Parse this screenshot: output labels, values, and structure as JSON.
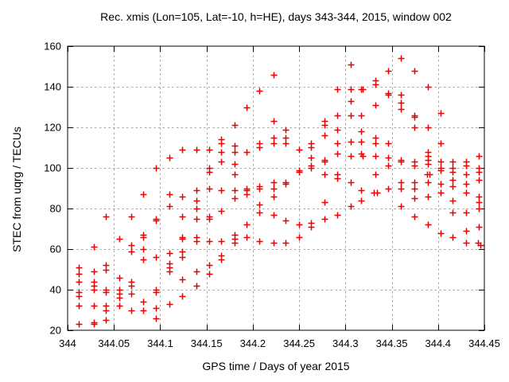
{
  "chart_data": {
    "type": "scatter",
    "title": "Rec. xmis (Lon=105, Lat=-10, h=HE), days 343-344, 2015, window 002",
    "xlabel": "GPS time / Days of year 2015",
    "ylabel": "STEC from uqrg / TECUs",
    "xlim": [
      344,
      344.45
    ],
    "ylim": [
      20,
      160
    ],
    "xticks": {
      "values": [
        344,
        344.05,
        344.1,
        344.15,
        344.2,
        344.25,
        344.3,
        344.35,
        344.4,
        344.45
      ],
      "labels": [
        "344",
        "344.05",
        "344.1",
        "344.15",
        "344.2",
        "344.25",
        "344.3",
        "344.35",
        "344.4",
        "344.45"
      ]
    },
    "yticks": {
      "values": [
        20,
        40,
        60,
        80,
        100,
        120,
        140,
        160
      ],
      "labels": [
        "20",
        "40",
        "60",
        "80",
        "100",
        "120",
        "140",
        "160"
      ]
    },
    "grid": true,
    "legend": "none",
    "marker": "plus",
    "colors": {
      "marker": "#e60000",
      "grid": "#a8a8a8",
      "axis": "#000000",
      "text": "#000000",
      "background": "#ffffff"
    },
    "series": [
      {
        "name": "STEC",
        "points": [
          [
            344.012,
            51
          ],
          [
            344.012,
            48
          ],
          [
            344.012,
            44
          ],
          [
            344.012,
            39
          ],
          [
            344.012,
            37
          ],
          [
            344.012,
            32
          ],
          [
            344.012,
            23
          ],
          [
            344.028,
            61
          ],
          [
            344.028,
            49
          ],
          [
            344.028,
            44
          ],
          [
            344.028,
            42
          ],
          [
            344.028,
            40
          ],
          [
            344.028,
            32
          ],
          [
            344.028,
            24
          ],
          [
            344.028,
            23
          ],
          [
            344.041,
            76
          ],
          [
            344.041,
            52
          ],
          [
            344.041,
            50
          ],
          [
            344.041,
            40
          ],
          [
            344.041,
            39
          ],
          [
            344.041,
            32
          ],
          [
            344.041,
            30
          ],
          [
            344.041,
            25
          ],
          [
            344.056,
            65
          ],
          [
            344.056,
            46
          ],
          [
            344.056,
            40
          ],
          [
            344.056,
            38
          ],
          [
            344.056,
            36
          ],
          [
            344.056,
            32
          ],
          [
            344.069,
            76
          ],
          [
            344.069,
            62
          ],
          [
            344.069,
            59
          ],
          [
            344.069,
            44
          ],
          [
            344.069,
            42
          ],
          [
            344.069,
            38
          ],
          [
            344.069,
            30
          ],
          [
            344.082,
            87
          ],
          [
            344.082,
            67
          ],
          [
            344.082,
            66
          ],
          [
            344.082,
            60
          ],
          [
            344.082,
            55
          ],
          [
            344.082,
            34
          ],
          [
            344.082,
            30
          ],
          [
            344.095,
            100
          ],
          [
            344.095,
            75
          ],
          [
            344.095,
            74
          ],
          [
            344.095,
            56
          ],
          [
            344.095,
            40
          ],
          [
            344.095,
            39
          ],
          [
            344.095,
            31
          ],
          [
            344.095,
            26
          ],
          [
            344.11,
            105
          ],
          [
            344.11,
            87
          ],
          [
            344.11,
            81
          ],
          [
            344.11,
            58
          ],
          [
            344.11,
            53
          ],
          [
            344.11,
            51
          ],
          [
            344.11,
            49
          ],
          [
            344.11,
            33
          ],
          [
            344.124,
            109
          ],
          [
            344.124,
            86
          ],
          [
            344.124,
            76
          ],
          [
            344.124,
            66
          ],
          [
            344.124,
            65
          ],
          [
            344.124,
            59
          ],
          [
            344.124,
            56
          ],
          [
            344.124,
            45
          ],
          [
            344.124,
            37
          ],
          [
            344.139,
            109
          ],
          [
            344.139,
            89
          ],
          [
            344.139,
            84
          ],
          [
            344.139,
            80
          ],
          [
            344.139,
            75
          ],
          [
            344.139,
            66
          ],
          [
            344.139,
            64
          ],
          [
            344.139,
            49
          ],
          [
            344.139,
            42
          ],
          [
            344.153,
            109
          ],
          [
            344.153,
            100
          ],
          [
            344.153,
            98
          ],
          [
            344.153,
            90
          ],
          [
            344.153,
            76
          ],
          [
            344.153,
            75
          ],
          [
            344.153,
            64
          ],
          [
            344.153,
            52
          ],
          [
            344.153,
            48
          ],
          [
            344.166,
            114
          ],
          [
            344.166,
            112
          ],
          [
            344.166,
            108
          ],
          [
            344.166,
            103
          ],
          [
            344.166,
            89
          ],
          [
            344.166,
            79
          ],
          [
            344.166,
            64
          ],
          [
            344.166,
            57
          ],
          [
            344.166,
            55
          ],
          [
            344.18,
            121
          ],
          [
            344.18,
            111
          ],
          [
            344.18,
            108
          ],
          [
            344.18,
            102
          ],
          [
            344.18,
            97
          ],
          [
            344.18,
            89
          ],
          [
            344.18,
            85
          ],
          [
            344.18,
            67
          ],
          [
            344.18,
            65
          ],
          [
            344.18,
            63
          ],
          [
            344.193,
            130
          ],
          [
            344.193,
            108
          ],
          [
            344.193,
            90
          ],
          [
            344.193,
            89
          ],
          [
            344.193,
            87
          ],
          [
            344.193,
            72
          ],
          [
            344.193,
            66
          ],
          [
            344.207,
            138
          ],
          [
            344.207,
            112
          ],
          [
            344.207,
            110
          ],
          [
            344.207,
            91
          ],
          [
            344.207,
            90
          ],
          [
            344.207,
            82
          ],
          [
            344.207,
            78
          ],
          [
            344.207,
            64
          ],
          [
            344.222,
            146
          ],
          [
            344.222,
            123
          ],
          [
            344.222,
            115
          ],
          [
            344.222,
            112
          ],
          [
            344.222,
            93
          ],
          [
            344.222,
            90
          ],
          [
            344.222,
            86
          ],
          [
            344.222,
            77
          ],
          [
            344.222,
            63
          ],
          [
            344.235,
            119
          ],
          [
            344.235,
            115
          ],
          [
            344.235,
            112
          ],
          [
            344.235,
            93
          ],
          [
            344.235,
            92
          ],
          [
            344.235,
            74
          ],
          [
            344.235,
            63
          ],
          [
            344.25,
            109
          ],
          [
            344.25,
            99
          ],
          [
            344.25,
            98
          ],
          [
            344.25,
            72
          ],
          [
            344.25,
            66
          ],
          [
            344.263,
            112
          ],
          [
            344.263,
            110
          ],
          [
            344.263,
            105
          ],
          [
            344.263,
            101
          ],
          [
            344.263,
            100
          ],
          [
            344.263,
            73
          ],
          [
            344.263,
            71
          ],
          [
            344.277,
            123
          ],
          [
            344.277,
            121
          ],
          [
            344.277,
            116
          ],
          [
            344.277,
            104
          ],
          [
            344.277,
            103
          ],
          [
            344.277,
            97
          ],
          [
            344.277,
            83
          ],
          [
            344.277,
            75
          ],
          [
            344.291,
            139
          ],
          [
            344.291,
            126
          ],
          [
            344.291,
            119
          ],
          [
            344.291,
            112
          ],
          [
            344.291,
            107
          ],
          [
            344.291,
            97
          ],
          [
            344.291,
            95
          ],
          [
            344.291,
            77
          ],
          [
            344.306,
            151
          ],
          [
            344.306,
            139
          ],
          [
            344.306,
            133
          ],
          [
            344.306,
            126
          ],
          [
            344.306,
            113
          ],
          [
            344.306,
            106
          ],
          [
            344.306,
            93
          ],
          [
            344.306,
            81
          ],
          [
            344.317,
            139
          ],
          [
            344.319,
            139
          ],
          [
            344.317,
            126
          ],
          [
            344.317,
            118
          ],
          [
            344.317,
            113
          ],
          [
            344.317,
            107
          ],
          [
            344.319,
            106
          ],
          [
            344.317,
            89
          ],
          [
            344.317,
            84
          ],
          [
            344.332,
            143
          ],
          [
            344.332,
            141
          ],
          [
            344.332,
            131
          ],
          [
            344.332,
            115
          ],
          [
            344.332,
            112
          ],
          [
            344.332,
            106
          ],
          [
            344.332,
            97
          ],
          [
            344.331,
            88
          ],
          [
            344.334,
            88
          ],
          [
            344.346,
            148
          ],
          [
            344.346,
            137
          ],
          [
            344.346,
            136
          ],
          [
            344.346,
            112
          ],
          [
            344.346,
            105
          ],
          [
            344.346,
            101
          ],
          [
            344.346,
            90
          ],
          [
            344.36,
            154
          ],
          [
            344.36,
            136
          ],
          [
            344.36,
            132
          ],
          [
            344.36,
            129
          ],
          [
            344.36,
            104
          ],
          [
            344.36,
            103
          ],
          [
            344.36,
            93
          ],
          [
            344.36,
            90
          ],
          [
            344.36,
            81
          ],
          [
            344.374,
            148
          ],
          [
            344.374,
            126
          ],
          [
            344.374,
            125
          ],
          [
            344.374,
            120
          ],
          [
            344.374,
            103
          ],
          [
            344.374,
            101
          ],
          [
            344.374,
            93
          ],
          [
            344.374,
            90
          ],
          [
            344.374,
            85
          ],
          [
            344.374,
            76
          ],
          [
            344.389,
            140
          ],
          [
            344.389,
            120
          ],
          [
            344.389,
            108
          ],
          [
            344.389,
            106
          ],
          [
            344.389,
            104
          ],
          [
            344.389,
            102
          ],
          [
            344.388,
            97
          ],
          [
            344.391,
            97
          ],
          [
            344.389,
            93
          ],
          [
            344.389,
            86
          ],
          [
            344.389,
            72
          ],
          [
            344.403,
            127
          ],
          [
            344.403,
            112
          ],
          [
            344.403,
            103
          ],
          [
            344.403,
            100
          ],
          [
            344.403,
            99
          ],
          [
            344.403,
            92
          ],
          [
            344.403,
            88
          ],
          [
            344.403,
            68
          ],
          [
            344.416,
            103
          ],
          [
            344.416,
            100
          ],
          [
            344.416,
            98
          ],
          [
            344.416,
            94
          ],
          [
            344.416,
            91
          ],
          [
            344.416,
            84
          ],
          [
            344.416,
            78
          ],
          [
            344.416,
            66
          ],
          [
            344.43,
            103
          ],
          [
            344.43,
            101
          ],
          [
            344.43,
            97
          ],
          [
            344.43,
            92
          ],
          [
            344.43,
            88
          ],
          [
            344.43,
            78
          ],
          [
            344.43,
            69
          ],
          [
            344.43,
            63
          ],
          [
            344.444,
            106
          ],
          [
            344.444,
            100
          ],
          [
            344.444,
            98
          ],
          [
            344.444,
            94
          ],
          [
            344.444,
            86
          ],
          [
            344.444,
            83
          ],
          [
            344.444,
            80
          ],
          [
            344.444,
            71
          ],
          [
            344.443,
            63
          ],
          [
            344.446,
            62
          ]
        ]
      }
    ]
  }
}
